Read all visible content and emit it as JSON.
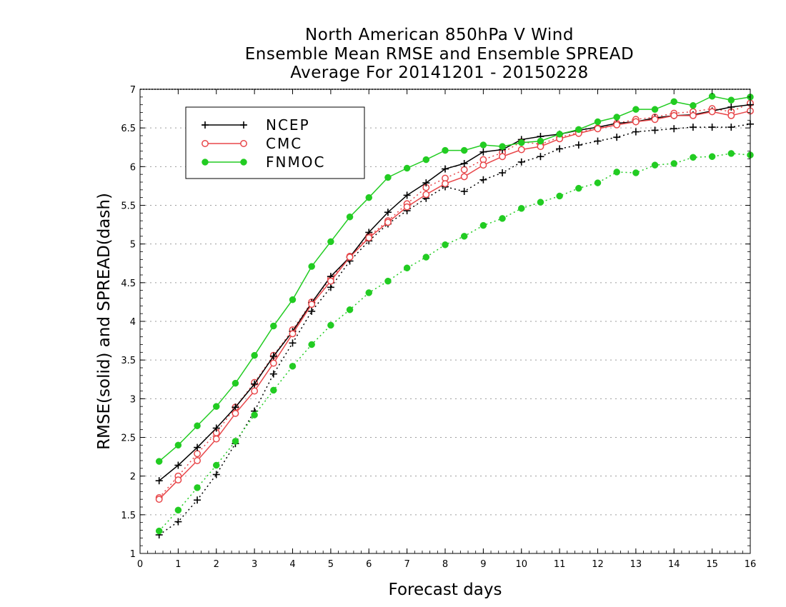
{
  "chart_data": {
    "type": "line",
    "title": [
      "North American 850hPa V Wind",
      "Ensemble Mean RMSE and Ensemble SPREAD",
      "Average For 20141201 - 20150228"
    ],
    "xlabel": "Forecast days",
    "ylabel": "RMSE(solid) and SPREAD(dash)",
    "xlim": [
      0,
      16
    ],
    "ylim": [
      1,
      7
    ],
    "xticks": [
      "0",
      "1",
      "2",
      "3",
      "4",
      "5",
      "6",
      "7",
      "8",
      "9",
      "10",
      "11",
      "12",
      "13",
      "14",
      "15",
      "16"
    ],
    "yticks": [
      "1",
      "1.5",
      "2",
      "2.5",
      "3",
      "3.5",
      "4",
      "4.5",
      "5",
      "5.5",
      "6",
      "6.5",
      "7"
    ],
    "grid": "horizontal dotted",
    "legend": "top-left",
    "x": [
      0.5,
      1,
      1.5,
      2,
      2.5,
      3,
      3.5,
      4,
      4.5,
      5,
      5.5,
      6,
      6.5,
      7,
      7.5,
      8,
      8.5,
      9,
      9.5,
      10,
      10.5,
      11,
      11.5,
      12,
      12.5,
      13,
      13.5,
      14,
      14.5,
      15,
      15.5,
      16
    ],
    "series": [
      {
        "name": "NCEP",
        "kind": "rmse",
        "color": "#000000",
        "marker": "plus",
        "values": [
          1.94,
          2.14,
          2.37,
          2.62,
          2.89,
          3.19,
          3.55,
          3.87,
          4.24,
          4.58,
          4.83,
          5.15,
          5.41,
          5.63,
          5.79,
          5.97,
          6.04,
          6.19,
          6.22,
          6.35,
          6.39,
          6.42,
          6.47,
          6.51,
          6.56,
          6.58,
          6.63,
          6.66,
          6.67,
          6.72,
          6.77,
          6.8
        ]
      },
      {
        "name": "CMC",
        "kind": "rmse",
        "color": "#e8474a",
        "marker": "circle",
        "values": [
          1.7,
          1.95,
          2.2,
          2.48,
          2.81,
          3.1,
          3.46,
          3.84,
          4.22,
          4.52,
          4.83,
          5.08,
          5.28,
          5.48,
          5.64,
          5.78,
          5.87,
          6.02,
          6.13,
          6.22,
          6.26,
          6.36,
          6.43,
          6.49,
          6.54,
          6.58,
          6.61,
          6.66,
          6.66,
          6.71,
          6.66,
          6.72
        ]
      },
      {
        "name": "FNMOC",
        "kind": "rmse",
        "color": "#22cc22",
        "marker": "dot",
        "values": [
          2.19,
          2.4,
          2.65,
          2.9,
          3.2,
          3.56,
          3.94,
          4.28,
          4.71,
          5.03,
          5.35,
          5.6,
          5.86,
          5.98,
          6.09,
          6.21,
          6.21,
          6.28,
          6.26,
          6.31,
          6.33,
          6.42,
          6.48,
          6.58,
          6.64,
          6.74,
          6.74,
          6.84,
          6.79,
          6.91,
          6.86,
          6.9
        ]
      },
      {
        "name": "NCEP",
        "kind": "spread",
        "color": "#000000",
        "marker": "plus",
        "values": [
          1.24,
          1.41,
          1.69,
          2.02,
          2.42,
          2.84,
          3.32,
          3.72,
          4.13,
          4.44,
          4.78,
          5.04,
          5.26,
          5.43,
          5.59,
          5.74,
          5.68,
          5.83,
          5.92,
          6.06,
          6.13,
          6.23,
          6.28,
          6.33,
          6.38,
          6.45,
          6.47,
          6.49,
          6.51,
          6.51,
          6.51,
          6.55
        ]
      },
      {
        "name": "CMC",
        "kind": "spread",
        "color": "#e8474a",
        "marker": "circle",
        "values": [
          1.72,
          2.0,
          2.29,
          2.56,
          2.89,
          3.21,
          3.56,
          3.89,
          4.25,
          4.55,
          4.84,
          5.1,
          5.3,
          5.52,
          5.73,
          5.85,
          5.96,
          6.09,
          6.18,
          6.32,
          6.29,
          6.38,
          6.44,
          6.5,
          6.56,
          6.61,
          6.64,
          6.69,
          6.71,
          6.75,
          6.71,
          6.82
        ]
      },
      {
        "name": "FNMOC",
        "kind": "spread",
        "color": "#22cc22",
        "marker": "dot",
        "values": [
          1.29,
          1.56,
          1.85,
          2.14,
          2.45,
          2.79,
          3.11,
          3.42,
          3.7,
          3.95,
          4.15,
          4.37,
          4.52,
          4.69,
          4.83,
          4.99,
          5.1,
          5.24,
          5.33,
          5.46,
          5.54,
          5.62,
          5.72,
          5.79,
          5.93,
          5.92,
          6.02,
          6.04,
          6.12,
          6.13,
          6.17,
          6.15
        ]
      }
    ]
  }
}
